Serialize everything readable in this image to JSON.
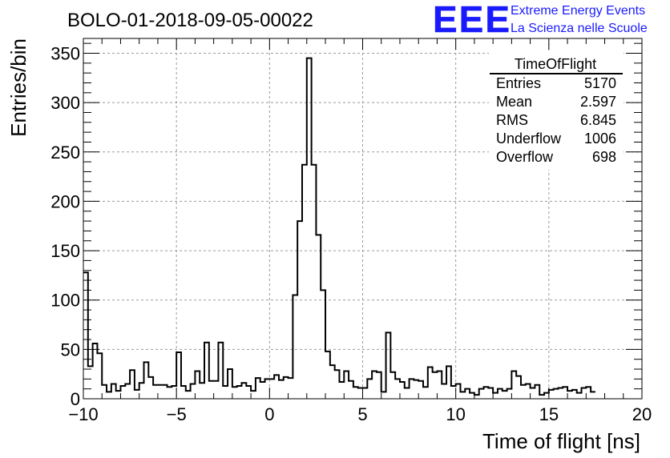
{
  "header": {
    "run_title": "BOLO-01-2018-09-05-00022",
    "logo_text": "EEE",
    "org_line1": "Extreme Energy Events",
    "org_line2": "La Scienza nelle Scuole",
    "logo_color": "#1a1aff"
  },
  "stats_box": {
    "title": "TimeOfFlight",
    "rows": [
      {
        "label": "Entries",
        "value": "5170"
      },
      {
        "label": "Mean",
        "value": "2.597"
      },
      {
        "label": "RMS",
        "value": "6.845"
      },
      {
        "label": "Underflow",
        "value": "1006"
      },
      {
        "label": "Overflow",
        "value": "698"
      }
    ]
  },
  "chart_data": {
    "type": "histogram",
    "title": "BOLO-01-2018-09-05-00022",
    "xlabel": "Time of flight [ns]",
    "ylabel": "Entries/bin",
    "xlim": [
      -10,
      20
    ],
    "ylim": [
      0,
      365
    ],
    "bin_width": 0.25,
    "x_ticks": [
      -10,
      -5,
      0,
      5,
      10,
      15,
      20
    ],
    "x_tick_labels": [
      "−10",
      "−5",
      "0",
      "5",
      "10",
      "15",
      "20"
    ],
    "y_ticks": [
      0,
      50,
      100,
      150,
      200,
      250,
      300,
      350
    ],
    "y_tick_labels": [
      "0",
      "50",
      "100",
      "150",
      "200",
      "250",
      "300",
      "350"
    ],
    "grid": true,
    "line_color": "#000000",
    "bins_start": -10,
    "values": [
      128,
      33,
      56,
      46,
      14,
      7,
      15,
      8,
      13,
      15,
      29,
      9,
      16,
      37,
      22,
      14,
      14,
      14,
      12,
      13,
      47,
      13,
      8,
      15,
      28,
      16,
      57,
      18,
      18,
      57,
      13,
      30,
      12,
      13,
      16,
      13,
      8,
      21,
      17,
      20,
      20,
      24,
      19,
      22,
      21,
      105,
      180,
      237,
      345,
      237,
      166,
      110,
      48,
      34,
      29,
      17,
      28,
      18,
      12,
      11,
      11,
      20,
      28,
      27,
      7,
      67,
      27,
      20,
      17,
      11,
      20,
      19,
      18,
      12,
      32,
      27,
      28,
      15,
      33,
      13,
      15,
      7,
      10,
      6,
      4,
      10,
      12,
      11,
      6,
      10,
      8,
      10,
      28,
      23,
      14,
      15,
      11,
      14,
      4,
      6,
      9,
      10,
      11,
      12,
      8,
      9,
      6,
      11,
      12,
      7
    ]
  }
}
